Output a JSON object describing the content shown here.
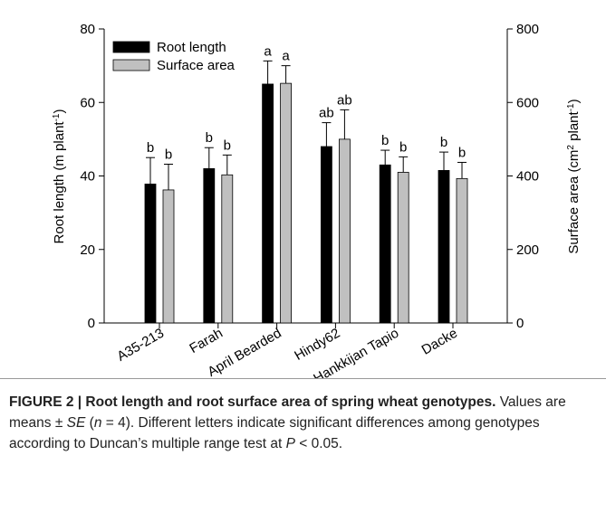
{
  "chart_data": {
    "type": "bar",
    "ylabel": [
      "Root length (m plant",
      "-1",
      ")"
    ],
    "y2label": [
      "Surface area (cm",
      "2",
      " plant",
      "-1",
      ")"
    ],
    "categories": [
      "A35-213",
      "Farah",
      "April Bearded",
      "Hindy62",
      "Hankkijan Tapio",
      "Dacke"
    ],
    "series": [
      {
        "name": "Root length",
        "color": "#000000",
        "values": [
          37.8,
          42,
          65,
          48,
          43,
          41.5
        ],
        "errors": [
          7.2,
          5.7,
          6.3,
          6.5,
          4,
          5
        ],
        "letters": [
          "b",
          "b",
          "a",
          "ab",
          "b",
          "b"
        ]
      },
      {
        "name": "Surface area",
        "color": "#c0c0c0",
        "axis": "y2",
        "values": [
          362,
          403,
          652,
          500,
          410,
          393
        ],
        "errors": [
          70,
          54,
          48,
          80,
          42,
          44
        ],
        "letters": [
          "b",
          "b",
          "a",
          "ab",
          "b",
          "b"
        ]
      }
    ],
    "ylim": [
      0,
      80
    ],
    "yticks": [
      0,
      20,
      40,
      60,
      80
    ],
    "y2lim": [
      0,
      800
    ],
    "y2ticks": [
      0,
      200,
      400,
      600,
      800
    ],
    "legend": "upper left"
  },
  "caption": {
    "bold": "FIGURE 2 | Root length and root surface area of spring wheat genotypes.",
    "body": [
      " Values are means ± ",
      "SE",
      " (",
      "n",
      " = 4). Different letters indicate significant differences among genotypes according to Duncan’s multiple range test at ",
      "P",
      " < 0.05."
    ]
  }
}
